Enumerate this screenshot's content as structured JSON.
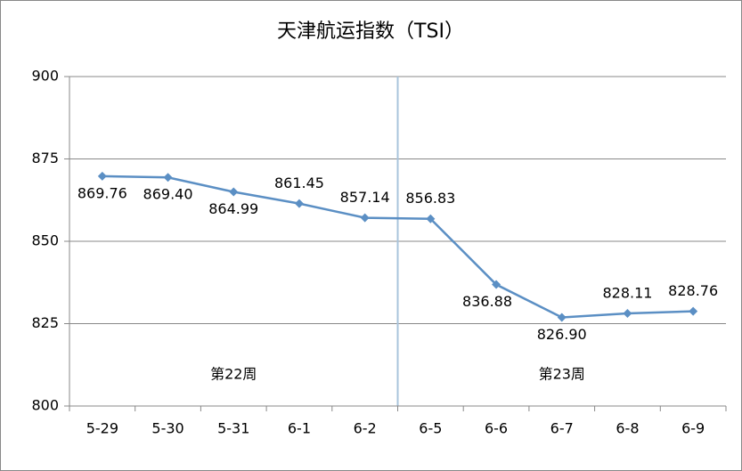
{
  "chart_data": {
    "type": "line",
    "title": "天津航运指数（TSI）",
    "categories": [
      "5-29",
      "5-30",
      "5-31",
      "6-1",
      "6-2",
      "6-5",
      "6-6",
      "6-7",
      "6-8",
      "6-9"
    ],
    "values": [
      869.76,
      869.4,
      864.99,
      861.45,
      857.14,
      856.83,
      836.88,
      826.9,
      828.11,
      828.76
    ],
    "value_labels": [
      "869.76",
      "869.40",
      "864.99",
      "861.45",
      "857.14",
      "856.83",
      "836.88",
      "826.90",
      "828.11",
      "828.76"
    ],
    "color": "#5b8fc4",
    "ylim": [
      800,
      900
    ],
    "yticks": [
      800,
      825,
      850,
      875,
      900
    ],
    "grid": true,
    "annotations": [
      "第22周",
      "第23周"
    ]
  }
}
